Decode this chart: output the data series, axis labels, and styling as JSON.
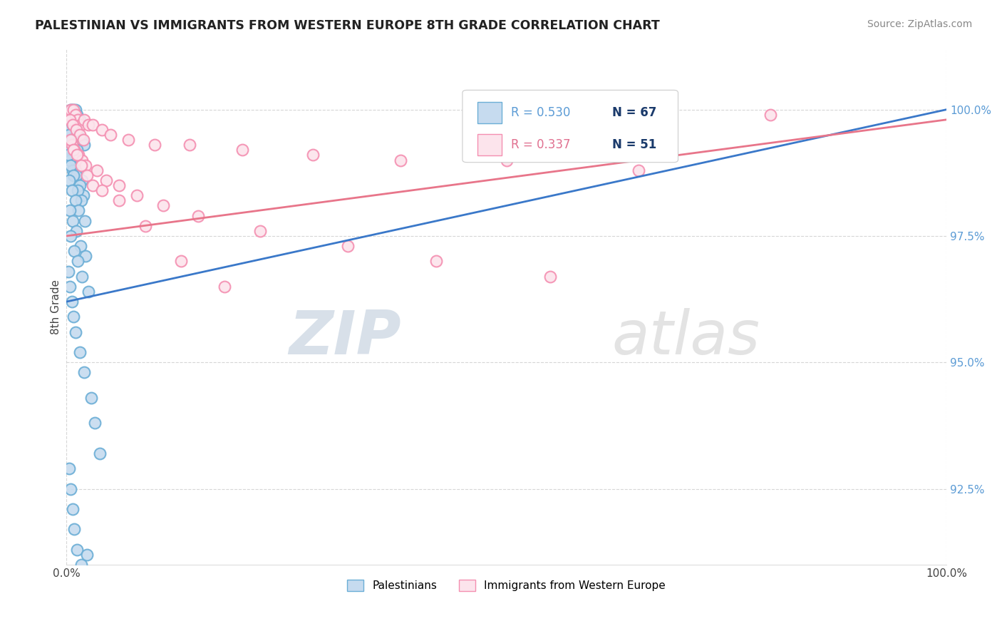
{
  "title": "PALESTINIAN VS IMMIGRANTS FROM WESTERN EUROPE 8TH GRADE CORRELATION CHART",
  "source": "Source: ZipAtlas.com",
  "ylabel": "8th Grade",
  "xlim": [
    0,
    100
  ],
  "ylim": [
    91.0,
    101.2
  ],
  "yticks": [
    92.5,
    95.0,
    97.5,
    100.0
  ],
  "xticks": [
    0,
    100
  ],
  "xticklabels": [
    "0.0%",
    "100.0%"
  ],
  "yticklabels": [
    "92.5%",
    "95.0%",
    "97.5%",
    "100.0%"
  ],
  "legend_r1": "R = 0.530",
  "legend_n1": "N = 67",
  "legend_r2": "R = 0.337",
  "legend_n2": "N = 51",
  "blue_color": "#6baed6",
  "pink_color": "#f48fb1",
  "blue_fill": "#c6dbef",
  "pink_fill": "#fce4ec",
  "trend_blue": "#3a78c9",
  "trend_pink": "#e8758a",
  "watermark_zip": "ZIP",
  "watermark_atlas": "atlas",
  "bg_color": "#ffffff",
  "palestinians_x": [
    0.3,
    0.5,
    0.8,
    1.0,
    1.2,
    0.4,
    0.6,
    0.9,
    1.1,
    1.5,
    0.2,
    0.7,
    1.3,
    1.7,
    2.0,
    0.5,
    0.8,
    1.0,
    1.4,
    1.8,
    0.3,
    0.6,
    0.9,
    1.2,
    1.6,
    0.4,
    0.7,
    1.1,
    1.5,
    1.9,
    0.2,
    0.5,
    0.8,
    1.3,
    1.7,
    0.3,
    0.6,
    1.0,
    1.4,
    2.1,
    0.4,
    0.7,
    1.1,
    1.6,
    2.2,
    0.5,
    0.9,
    1.3,
    1.8,
    2.5,
    0.2,
    0.4,
    0.6,
    0.8,
    1.0,
    1.5,
    2.0,
    2.8,
    3.2,
    3.8,
    0.3,
    0.5,
    0.7,
    0.9,
    1.2,
    1.7,
    2.3
  ],
  "palestinians_y": [
    99.9,
    100.0,
    100.0,
    100.0,
    99.9,
    99.8,
    100.0,
    99.9,
    99.7,
    99.8,
    99.6,
    99.7,
    99.5,
    99.4,
    99.3,
    99.2,
    99.1,
    99.0,
    98.8,
    98.6,
    99.5,
    99.4,
    99.3,
    99.2,
    98.9,
    99.0,
    98.8,
    98.7,
    98.5,
    98.3,
    99.1,
    98.9,
    98.7,
    98.4,
    98.2,
    98.6,
    98.4,
    98.2,
    98.0,
    97.8,
    98.0,
    97.8,
    97.6,
    97.3,
    97.1,
    97.5,
    97.2,
    97.0,
    96.7,
    96.4,
    96.8,
    96.5,
    96.2,
    95.9,
    95.6,
    95.2,
    94.8,
    94.3,
    93.8,
    93.2,
    92.9,
    92.5,
    92.1,
    91.7,
    91.3,
    91.0,
    91.2
  ],
  "immigrants_x": [
    0.3,
    0.5,
    0.8,
    1.0,
    1.3,
    1.6,
    2.0,
    2.5,
    3.0,
    4.0,
    5.0,
    7.0,
    10.0,
    14.0,
    20.0,
    28.0,
    38.0,
    50.0,
    65.0,
    80.0,
    0.4,
    0.7,
    1.1,
    1.5,
    1.9,
    0.6,
    0.9,
    1.4,
    1.8,
    2.2,
    3.5,
    4.5,
    6.0,
    8.0,
    11.0,
    15.0,
    22.0,
    32.0,
    42.0,
    55.0,
    0.5,
    0.8,
    1.2,
    1.7,
    2.3,
    3.0,
    4.0,
    6.0,
    9.0,
    13.0,
    18.0
  ],
  "immigrants_y": [
    99.9,
    100.0,
    100.0,
    99.9,
    99.8,
    99.7,
    99.8,
    99.7,
    99.7,
    99.6,
    99.5,
    99.4,
    99.3,
    99.3,
    99.2,
    99.1,
    99.0,
    99.0,
    98.8,
    99.9,
    99.8,
    99.7,
    99.6,
    99.5,
    99.4,
    99.3,
    99.2,
    99.1,
    99.0,
    98.9,
    98.8,
    98.6,
    98.5,
    98.3,
    98.1,
    97.9,
    97.6,
    97.3,
    97.0,
    96.7,
    99.4,
    99.2,
    99.1,
    98.9,
    98.7,
    98.5,
    98.4,
    98.2,
    97.7,
    97.0,
    96.5
  ],
  "blue_trend_x0": 0,
  "blue_trend_y0": 96.2,
  "blue_trend_x1": 100,
  "blue_trend_y1": 100.0,
  "pink_trend_x0": 0,
  "pink_trend_y0": 97.5,
  "pink_trend_x1": 100,
  "pink_trend_y1": 99.8
}
